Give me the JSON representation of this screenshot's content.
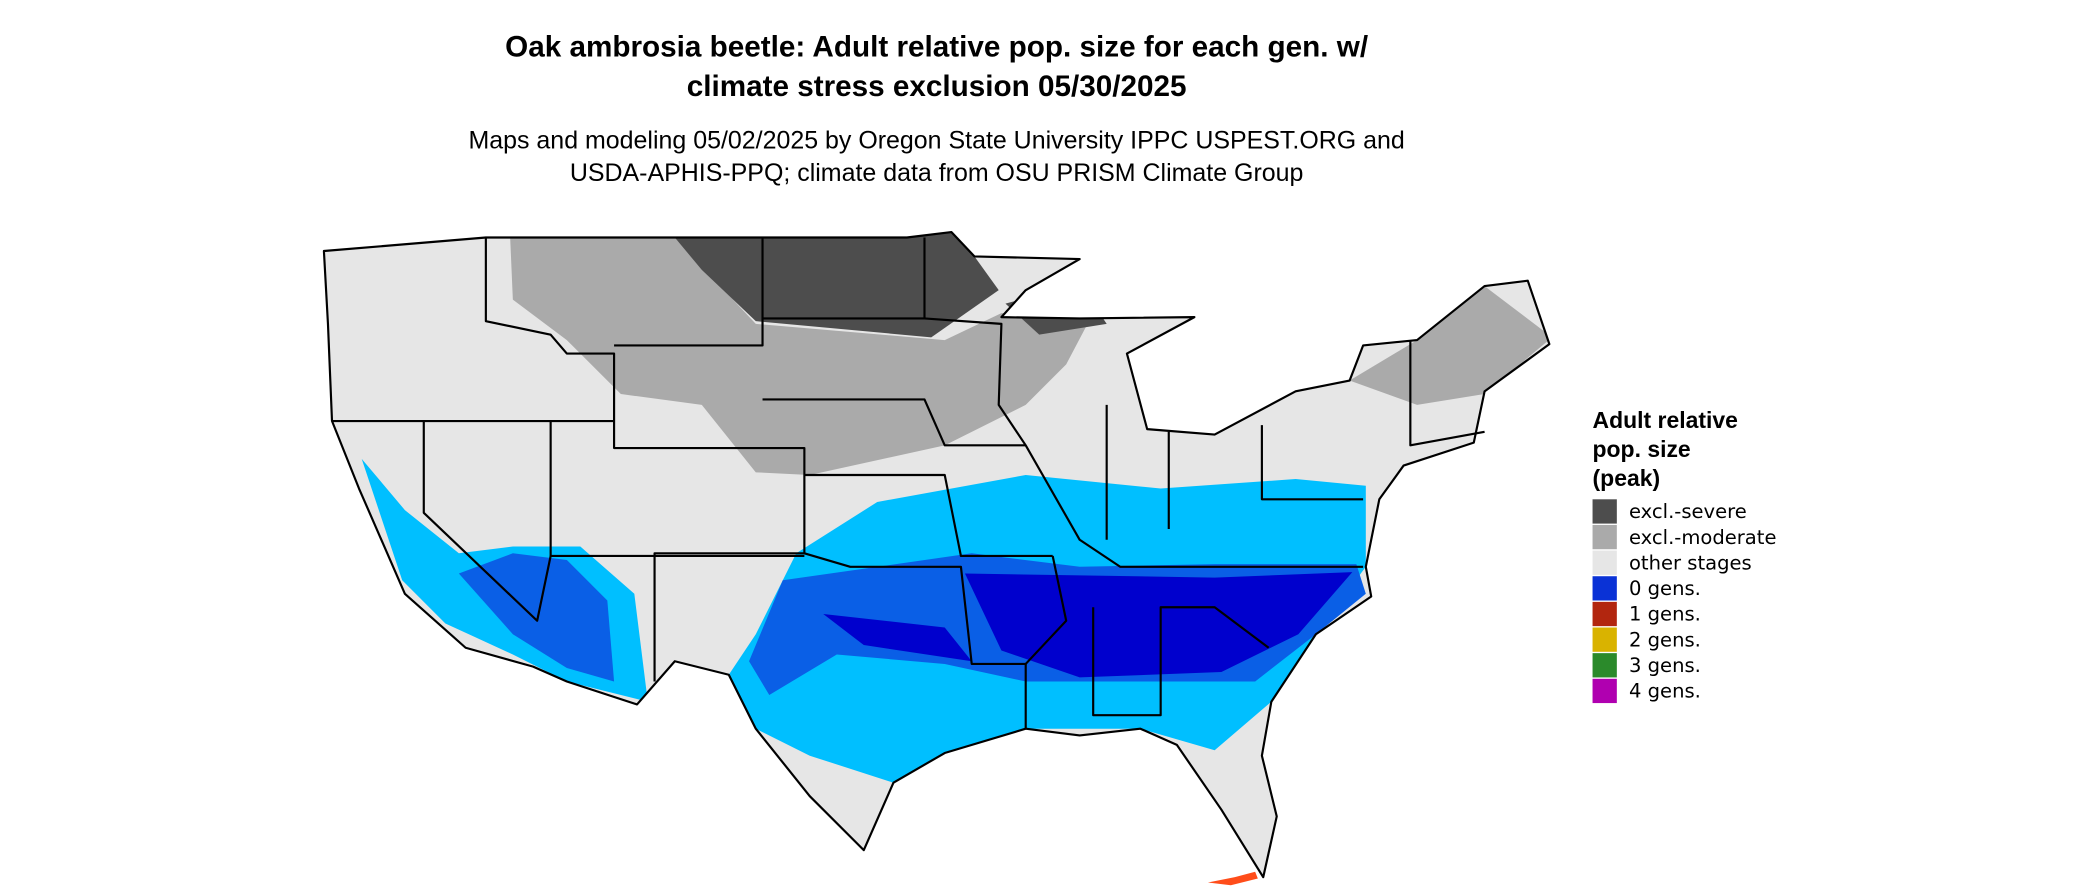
{
  "title": [
    "Oak ambrosia beetle: Adult relative pop. size for each gen. w/",
    "climate stress exclusion 05/30/2025"
  ],
  "subtitle": [
    "Maps and modeling 05/02/2025 by Oregon State University IPPC USPEST.ORG and",
    "USDA-APHIS-PPQ; climate data from OSU PRISM Climate Group"
  ],
  "legend": {
    "title": [
      "Adult relative",
      "pop. size",
      "(peak)"
    ],
    "items": [
      {
        "label": "excl.-severe",
        "color": "#4d4d4d"
      },
      {
        "label": "excl.-moderate",
        "color": "#aaaaaa"
      },
      {
        "label": "other stages",
        "color": "#e6e6e6"
      },
      {
        "label": "0 gens.",
        "color": "#0a32d6"
      },
      {
        "label": "1 gens.",
        "color": "#b2260f"
      },
      {
        "label": "2 gens.",
        "color": "#d9b300"
      },
      {
        "label": "3 gens.",
        "color": "#2b8a2b"
      },
      {
        "label": "4 gens.",
        "color": "#b000b0"
      }
    ]
  }
}
